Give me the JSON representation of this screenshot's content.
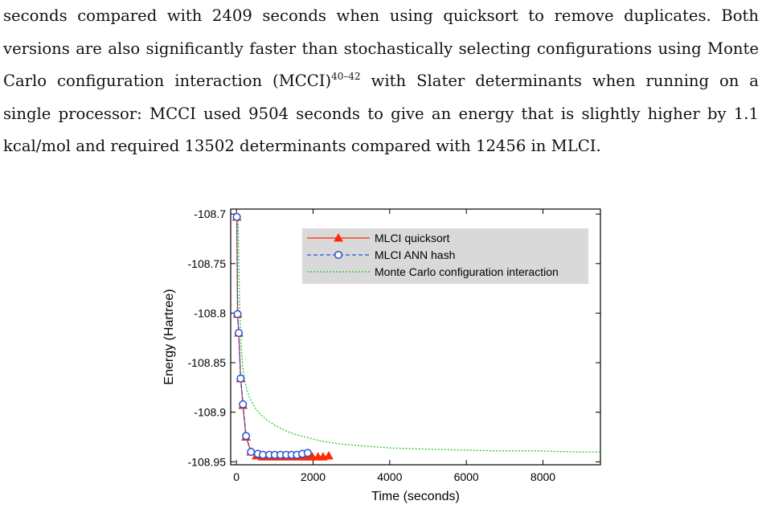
{
  "paragraph": {
    "line1": "seconds compared with 2409 seconds when using quicksort to remove duplicates.  Both",
    "line2": "versions are also significantly faster than stochastically selecting configurations using Monte",
    "line3_a": "Carlo configuration interaction (MCCI)",
    "line3_sup": "40–42",
    "line3_b": " with Slater determinants when running on a",
    "line4": "single processor: MCCI used 9504 seconds to give an energy that is slightly higher by 1.1",
    "line5": "kcal/mol and required 13502 determinants compared with 12456 in MLCI."
  },
  "chart_data": {
    "type": "line",
    "xlabel": "Time (seconds)",
    "ylabel": "Energy (Hartree)",
    "xlim": [
      -150,
      9500
    ],
    "ylim": [
      -108.953,
      -108.695
    ],
    "xticks": [
      0,
      2000,
      4000,
      6000,
      8000
    ],
    "yticks": [
      -108.7,
      -108.75,
      -108.8,
      -108.85,
      -108.9,
      -108.95
    ],
    "ytick_labels": [
      "-108.7",
      "-108.75",
      "-108.8",
      "-108.85",
      "-108.9",
      "-108.95"
    ],
    "xtick_labels": [
      "0",
      "2000",
      "4000",
      "6000",
      "8000"
    ],
    "legend_position": "top-right",
    "grid": false,
    "series": [
      {
        "name": "MLCI quicksort",
        "color": "#ff2a00",
        "style": "solid",
        "marker": "triangle",
        "x": [
          10,
          30,
          60,
          110,
          170,
          250,
          380,
          520,
          680,
          820,
          980,
          1130,
          1290,
          1450,
          1600,
          1760,
          1860,
          1980,
          2130,
          2260,
          2409
        ],
        "y": [
          -108.703,
          -108.801,
          -108.82,
          -108.866,
          -108.893,
          -108.925,
          -108.94,
          -108.944,
          -108.945,
          -108.945,
          -108.945,
          -108.945,
          -108.945,
          -108.945,
          -108.945,
          -108.945,
          -108.945,
          -108.945,
          -108.945,
          -108.945,
          -108.944
        ]
      },
      {
        "name": "MLCI ANN hash",
        "color": "#2850d8",
        "style": "dashed",
        "marker": "circle",
        "x": [
          10,
          30,
          60,
          110,
          170,
          250,
          380,
          560,
          690,
          860,
          1000,
          1150,
          1300,
          1440,
          1580,
          1720,
          1860
        ],
        "y": [
          -108.703,
          -108.801,
          -108.82,
          -108.866,
          -108.892,
          -108.924,
          -108.94,
          -108.942,
          -108.943,
          -108.943,
          -108.943,
          -108.943,
          -108.943,
          -108.943,
          -108.943,
          -108.942,
          -108.941
        ]
      },
      {
        "name": "Monte Carlo configuration interaction",
        "color": "#22cc22",
        "style": "dotted",
        "marker": "none",
        "x": [
          40,
          80,
          120,
          160,
          200,
          260,
          330,
          420,
          520,
          650,
          800,
          1000,
          1250,
          1500,
          1800,
          2200,
          2700,
          3300,
          4000,
          4800,
          5700,
          6700,
          7800,
          8800,
          9504
        ],
        "y": [
          -108.703,
          -108.79,
          -108.83,
          -108.852,
          -108.865,
          -108.875,
          -108.884,
          -108.891,
          -108.897,
          -108.903,
          -108.908,
          -108.913,
          -108.918,
          -108.922,
          -108.925,
          -108.929,
          -108.932,
          -108.934,
          -108.936,
          -108.937,
          -108.938,
          -108.939,
          -108.939,
          -108.94,
          -108.94
        ]
      }
    ]
  }
}
